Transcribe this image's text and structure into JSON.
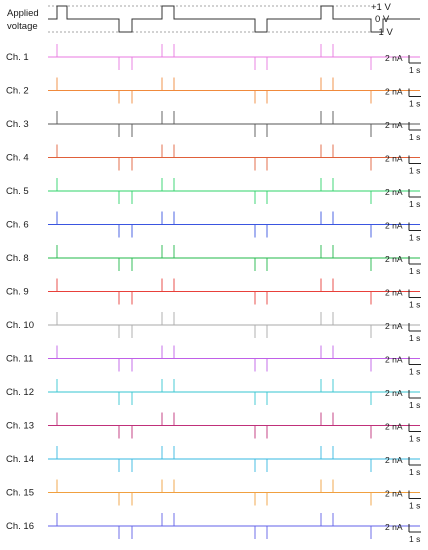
{
  "header": {
    "title_line1": "Applied",
    "title_line2": "voltage",
    "levels": [
      "+1 V",
      "0 V",
      "−1 V"
    ]
  },
  "scale_bar": {
    "current": "2 nA",
    "time": "1 s"
  },
  "pulse_sequence": [
    {
      "level": 1,
      "start": 0,
      "end": 1
    },
    {
      "level": -1,
      "start": 1,
      "end": 2
    },
    {
      "level": 1,
      "start": 2,
      "end": 3
    },
    {
      "level": -1,
      "start": 3,
      "end": 4
    },
    {
      "level": 1,
      "start": 4,
      "end": 5
    },
    {
      "level": -1,
      "start": 5,
      "end": 6
    }
  ],
  "channels": [
    {
      "label": "Ch. 1",
      "color": "#e879e0"
    },
    {
      "label": "Ch. 2",
      "color": "#f08a3c"
    },
    {
      "label": "Ch. 3",
      "color": "#555555"
    },
    {
      "label": "Ch. 4",
      "color": "#e0603a"
    },
    {
      "label": "Ch. 5",
      "color": "#2fd36a"
    },
    {
      "label": "Ch. 6",
      "color": "#3a55e0"
    },
    {
      "label": "Ch. 8",
      "color": "#22b84a"
    },
    {
      "label": "Ch. 9",
      "color": "#e8403a"
    },
    {
      "label": "Ch. 10",
      "color": "#aaaaaa"
    },
    {
      "label": "Ch. 11",
      "color": "#c060e8"
    },
    {
      "label": "Ch. 12",
      "color": "#36c6d0"
    },
    {
      "label": "Ch. 13",
      "color": "#c0307a"
    },
    {
      "label": "Ch. 14",
      "color": "#36b8e0"
    },
    {
      "label": "Ch. 15",
      "color": "#f0a040"
    },
    {
      "label": "Ch. 16",
      "color": "#6060e8"
    }
  ]
}
